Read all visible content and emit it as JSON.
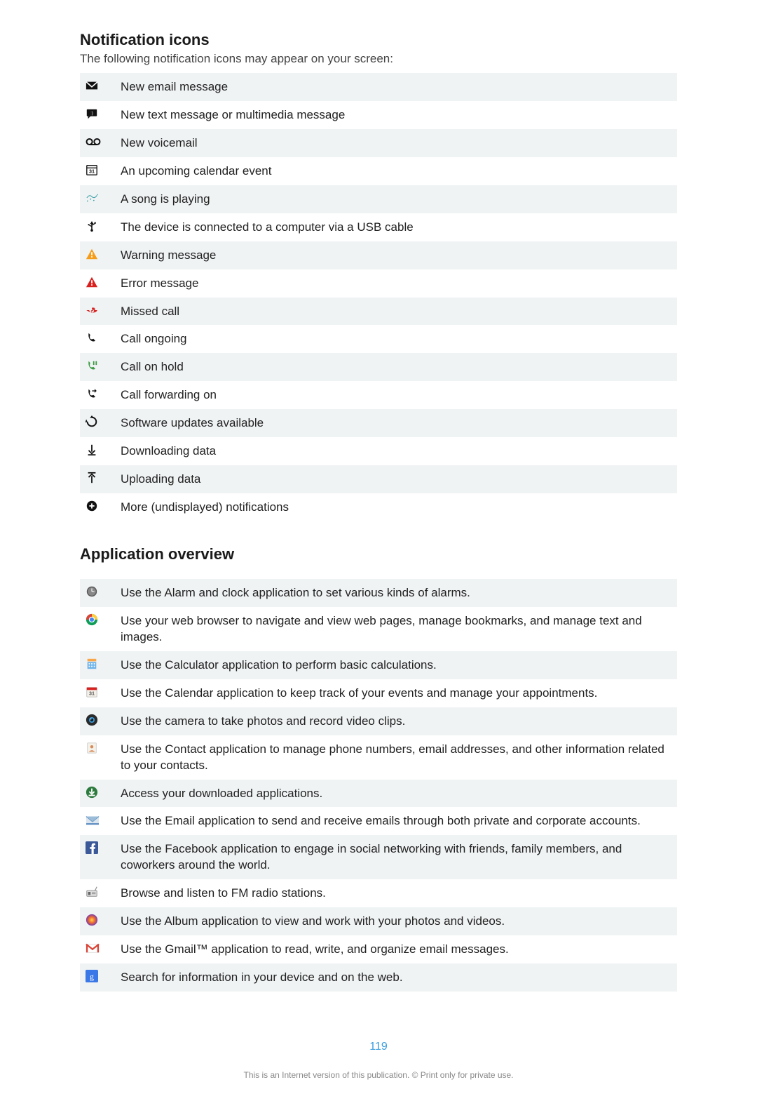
{
  "section1": {
    "title": "Notification icons",
    "subtitle": "The following notification icons may appear on your screen:",
    "rows": [
      {
        "icon": "mail",
        "text": "New email message",
        "alt": true
      },
      {
        "icon": "sms",
        "text": "New text message or multimedia message",
        "alt": false
      },
      {
        "icon": "voicemail",
        "text": "New voicemail",
        "alt": true
      },
      {
        "icon": "cal31",
        "text": "An upcoming calendar event",
        "alt": false
      },
      {
        "icon": "music",
        "text": "A song is playing",
        "alt": true
      },
      {
        "icon": "usb",
        "text": "The device is connected to a computer via a USB cable",
        "alt": false
      },
      {
        "icon": "warn-o",
        "text": "Warning message",
        "alt": true
      },
      {
        "icon": "warn-r",
        "text": "Error message",
        "alt": false
      },
      {
        "icon": "missed",
        "text": "Missed call",
        "alt": true
      },
      {
        "icon": "phone",
        "text": "Call ongoing",
        "alt": false
      },
      {
        "icon": "hold",
        "text": "Call on hold",
        "alt": true
      },
      {
        "icon": "fwd",
        "text": "Call forwarding on",
        "alt": false
      },
      {
        "icon": "update",
        "text": "Software updates available",
        "alt": true
      },
      {
        "icon": "down",
        "text": "Downloading data",
        "alt": false
      },
      {
        "icon": "up",
        "text": "Uploading data",
        "alt": true
      },
      {
        "icon": "more",
        "text": "More (undisplayed) notifications",
        "alt": false
      }
    ]
  },
  "section2": {
    "title": "Application overview",
    "rows": [
      {
        "icon": "clock",
        "text": "Use the Alarm and clock application to set various kinds of alarms.",
        "alt": true
      },
      {
        "icon": "chrome",
        "text": "Use your web browser to navigate and view web pages, manage bookmarks, and manage text and images.",
        "alt": false
      },
      {
        "icon": "calc",
        "text": "Use the Calculator application to perform basic calculations.",
        "alt": true
      },
      {
        "icon": "calapp",
        "text": "Use the Calendar application to keep track of your events and manage your appointments.",
        "alt": false
      },
      {
        "icon": "camera",
        "text": "Use the camera to take photos and record video clips.",
        "alt": true
      },
      {
        "icon": "contact",
        "text": "Use the Contact application to manage phone numbers, email addresses, and other information related to your contacts.",
        "alt": false
      },
      {
        "icon": "downloads",
        "text": "Access your downloaded applications.",
        "alt": true
      },
      {
        "icon": "email",
        "text": "Use the Email application to send and receive emails through both private and corporate accounts.",
        "alt": false
      },
      {
        "icon": "facebook",
        "text": "Use the Facebook application to engage in social networking with friends, family members, and coworkers around the world.",
        "alt": true
      },
      {
        "icon": "fm",
        "text": "Browse and listen to FM radio stations.",
        "alt": false
      },
      {
        "icon": "album",
        "text": "Use the Album application to view and work with your photos and videos.",
        "alt": true
      },
      {
        "icon": "gmail",
        "text": "Use the Gmail™ application to read, write, and organize email messages.",
        "alt": false
      },
      {
        "icon": "google",
        "text": "Search for information in your device and on the web.",
        "alt": true
      }
    ]
  },
  "colors": {
    "orange": "#f59c1a",
    "red": "#d8201f",
    "blue": "#2f6fb3",
    "teal": "#3aa0a5",
    "green": "#3a9b42",
    "black": "#111",
    "fb": "#3b5998",
    "gblue": "#3b78e7",
    "gred": "#db4437",
    "gyellow": "#f4b400",
    "ggreen": "#0f9d58",
    "chrome1": "#db4437",
    "chrome2": "#0f9d58",
    "chrome3": "#ffcd40",
    "chrome4": "#4285f4",
    "calc1": "#f7a64a",
    "calc2": "#6fb4e8"
  },
  "page_number": "119",
  "footer": "This is an Internet version of this publication. © Print only for private use."
}
